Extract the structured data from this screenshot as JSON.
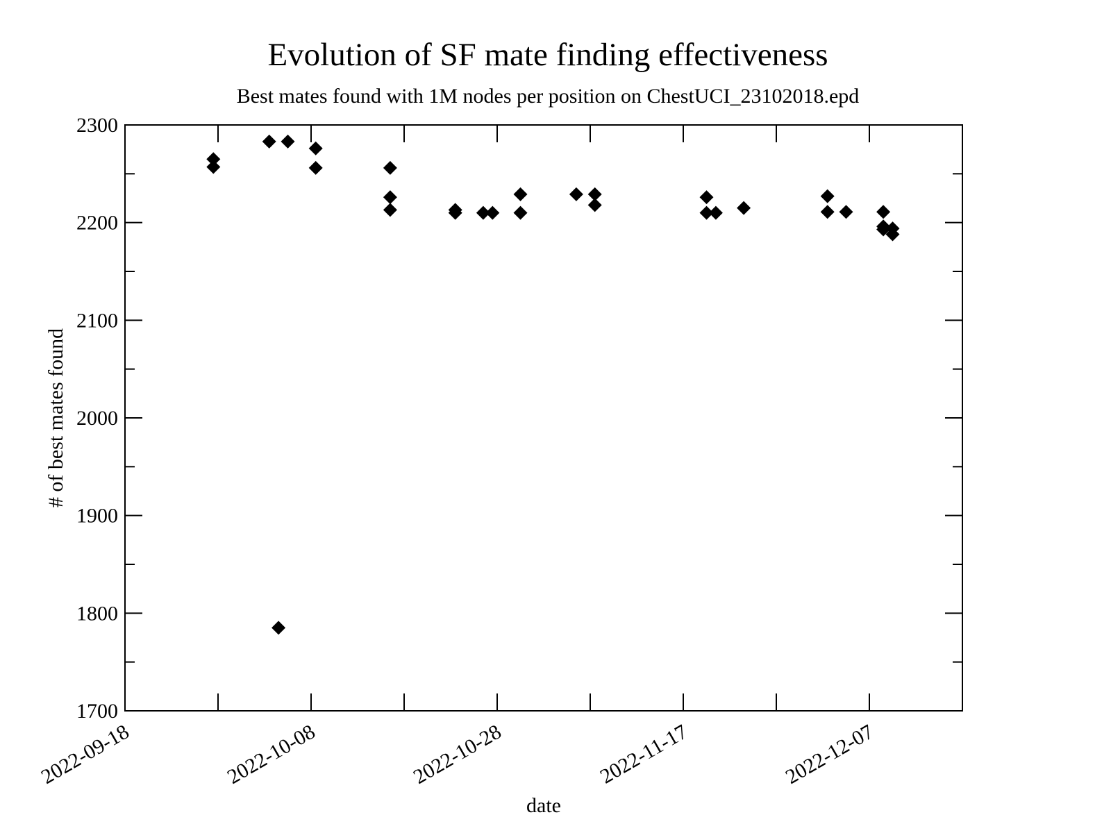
{
  "chart_data": {
    "type": "scatter",
    "title": "Evolution of SF mate finding effectiveness",
    "subtitle": "Best mates found with 1M nodes per position on ChestUCI_23102018.epd",
    "xlabel": "date",
    "ylabel": "# of best mates found",
    "x_axis": {
      "scale": "date",
      "range": [
        "2022-09-18",
        "2022-12-17"
      ],
      "tick_labels": [
        "2022-09-18",
        "2022-10-08",
        "2022-10-28",
        "2022-11-17",
        "2022-12-07"
      ],
      "minor_ticks": [
        "2022-09-28",
        "2022-10-18",
        "2022-11-07",
        "2022-11-27"
      ]
    },
    "y_axis": {
      "range": [
        1700,
        2300
      ],
      "ticks": [
        1700,
        1800,
        1900,
        2000,
        2100,
        2200,
        2300
      ],
      "minor_ticks": [
        1750,
        1850,
        1950,
        2050,
        2150,
        2250
      ]
    },
    "grid": false,
    "marker": "diamond",
    "marker_color": "#000000",
    "points": [
      {
        "x": "2022-09-27 12:00",
        "y": 2265
      },
      {
        "x": "2022-09-27 12:00",
        "y": 2257
      },
      {
        "x": "2022-10-03 12:00",
        "y": 2283
      },
      {
        "x": "2022-10-04 12:00",
        "y": 1785
      },
      {
        "x": "2022-10-05 12:00",
        "y": 2283
      },
      {
        "x": "2022-10-08 12:00",
        "y": 2276
      },
      {
        "x": "2022-10-08 12:00",
        "y": 2256
      },
      {
        "x": "2022-10-16 12:00",
        "y": 2256
      },
      {
        "x": "2022-10-16 12:00",
        "y": 2226
      },
      {
        "x": "2022-10-16 12:00",
        "y": 2213
      },
      {
        "x": "2022-10-23 12:00",
        "y": 2213
      },
      {
        "x": "2022-10-23 12:00",
        "y": 2210
      },
      {
        "x": "2022-10-26 12:00",
        "y": 2210
      },
      {
        "x": "2022-10-27 12:00",
        "y": 2210
      },
      {
        "x": "2022-10-30 12:00",
        "y": 2229
      },
      {
        "x": "2022-10-30 12:00",
        "y": 2210
      },
      {
        "x": "2022-11-05 12:00",
        "y": 2229
      },
      {
        "x": "2022-11-07 12:00",
        "y": 2229
      },
      {
        "x": "2022-11-07 12:00",
        "y": 2218
      },
      {
        "x": "2022-11-19 12:00",
        "y": 2226
      },
      {
        "x": "2022-11-19 12:00",
        "y": 2210
      },
      {
        "x": "2022-11-20 12:00",
        "y": 2210
      },
      {
        "x": "2022-11-23 12:00",
        "y": 2215
      },
      {
        "x": "2022-12-02 12:00",
        "y": 2227
      },
      {
        "x": "2022-12-02 12:00",
        "y": 2211
      },
      {
        "x": "2022-12-04 12:00",
        "y": 2211
      },
      {
        "x": "2022-12-08 12:00",
        "y": 2211
      },
      {
        "x": "2022-12-08 12:00",
        "y": 2196
      },
      {
        "x": "2022-12-08 12:00",
        "y": 2193
      },
      {
        "x": "2022-12-09 12:00",
        "y": 2194
      },
      {
        "x": "2022-12-09 12:00",
        "y": 2188
      }
    ]
  }
}
